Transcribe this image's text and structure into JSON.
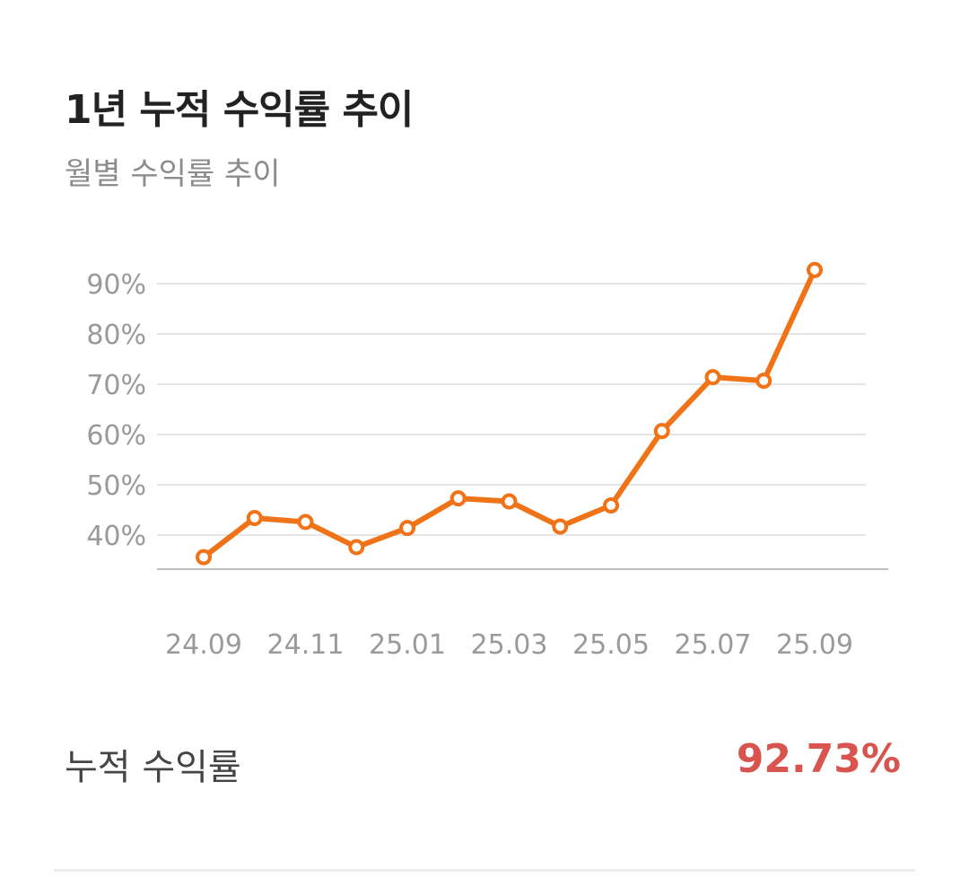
{
  "header": {
    "title": "1년 누적 수익률 추이",
    "subtitle": "월별 수익률 추이"
  },
  "summary": {
    "label": "누적 수익률",
    "value": "92.73%"
  },
  "colors": {
    "line": "#f07317",
    "value": "#d9534f",
    "grid": "#e6e6e6",
    "axis": "#bdbdbd",
    "tick": "#9a9a9a"
  },
  "chart_data": {
    "type": "line",
    "title": "1년 누적 수익률 추이",
    "subtitle": "월별 수익률 추이",
    "x": [
      "24.09",
      "24.10",
      "24.11",
      "24.12",
      "25.01",
      "25.02",
      "25.03",
      "25.04",
      "25.05",
      "25.06",
      "25.07",
      "25.08",
      "25.09"
    ],
    "x_tick_labels": [
      "24.09",
      "24.11",
      "25.01",
      "25.03",
      "25.05",
      "25.07",
      "25.09"
    ],
    "series": [
      {
        "values": [
          35.6,
          43.4,
          42.6,
          37.6,
          41.4,
          47.3,
          46.7,
          41.7,
          45.9,
          60.7,
          71.4,
          70.7,
          92.73
        ]
      }
    ],
    "y_ticks": [
      40,
      50,
      60,
      70,
      80,
      90
    ],
    "y_tick_labels": [
      "40%",
      "50%",
      "60%",
      "70%",
      "80%",
      "90%"
    ],
    "ylim": [
      33,
      94
    ],
    "grid": true,
    "legend": "none",
    "xlabel": "",
    "ylabel": ""
  }
}
